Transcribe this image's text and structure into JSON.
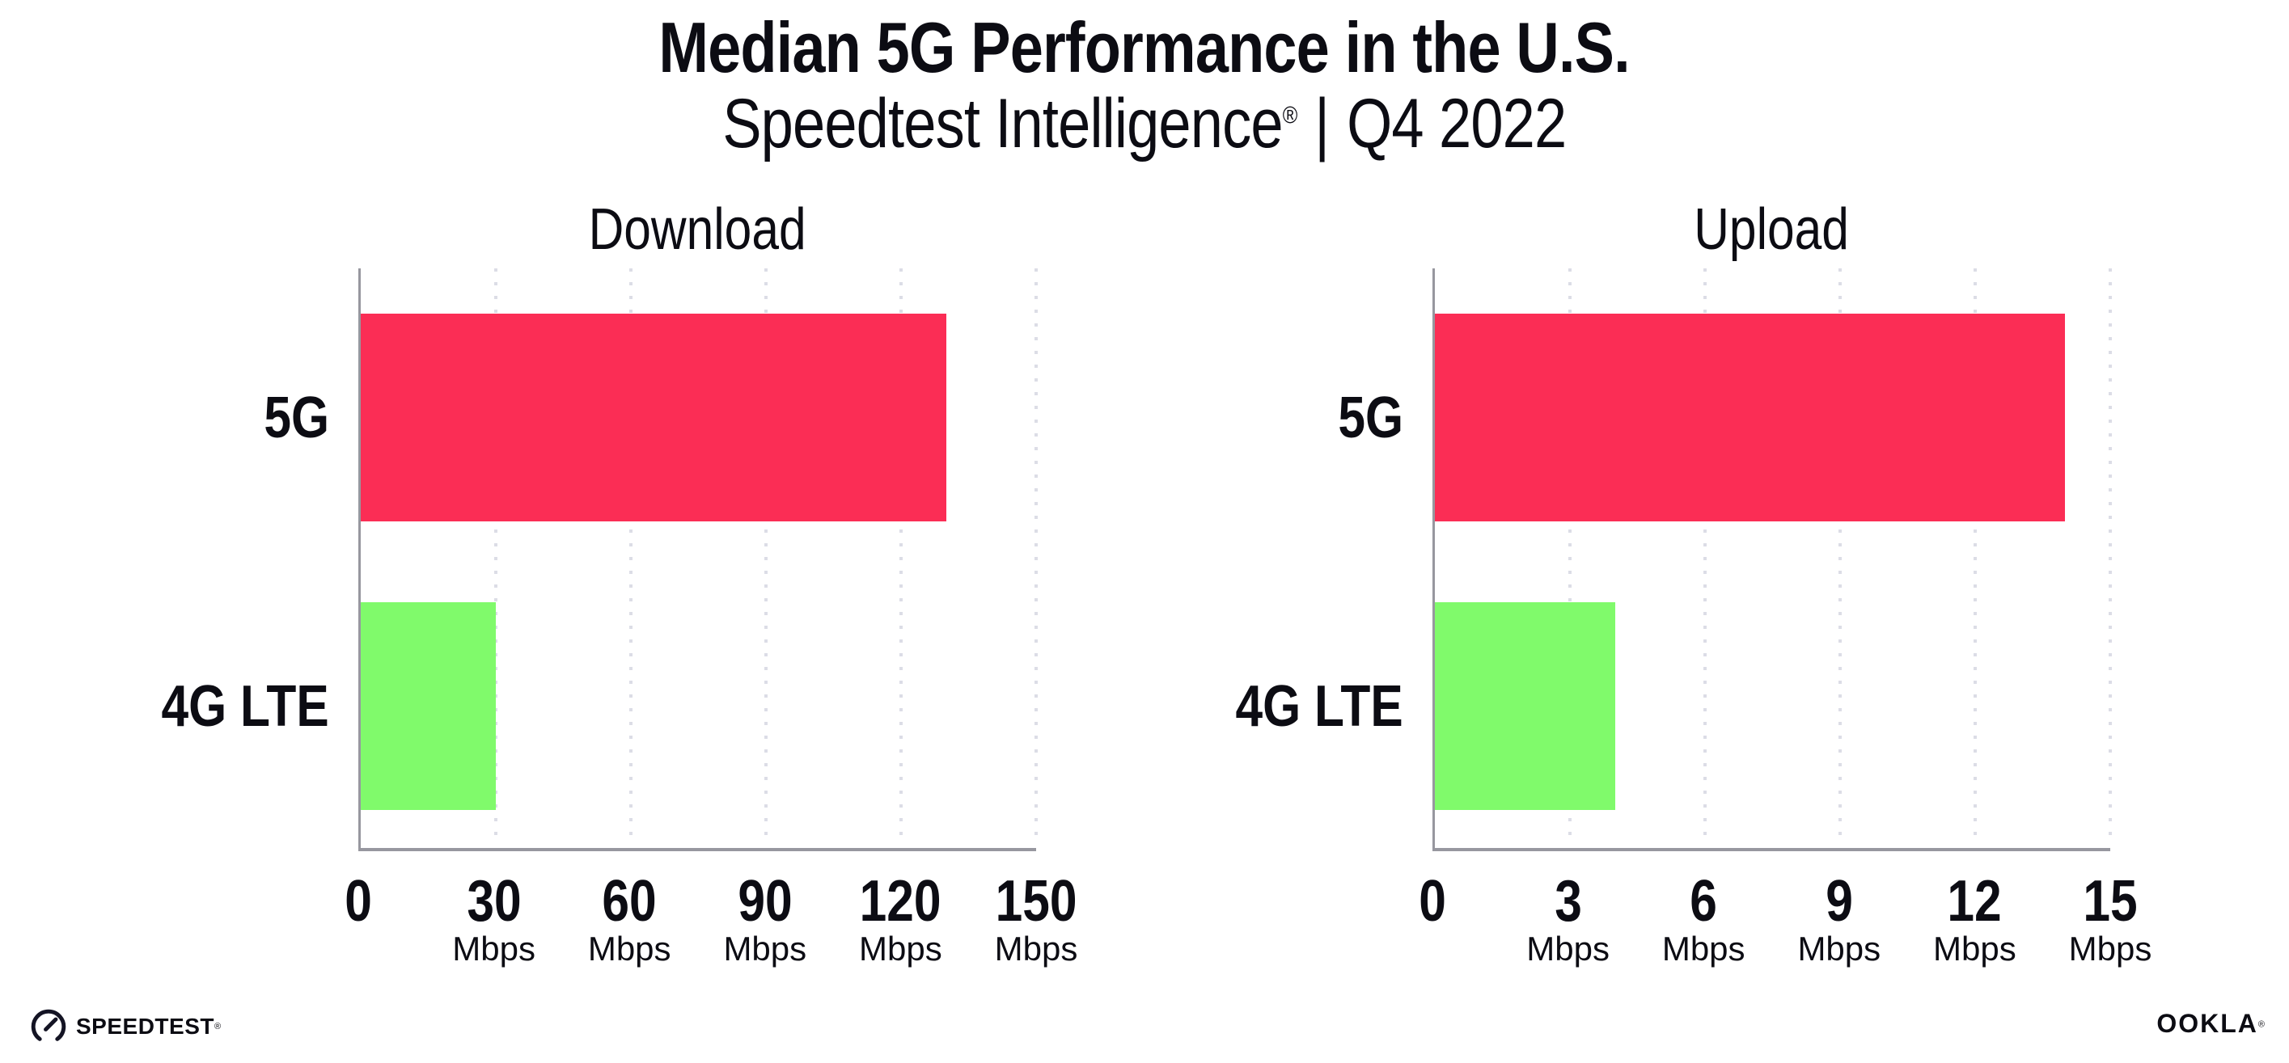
{
  "header": {
    "title": "Median 5G Performance in the U.S.",
    "subtitle": {
      "brand": "Speedtest Intelligence",
      "registered_mark": "®",
      "separator": "|",
      "period": "Q4 2022"
    }
  },
  "chart_data": [
    {
      "type": "bar",
      "orientation": "horizontal",
      "title": "Download",
      "categories": [
        "5G",
        "4G LTE"
      ],
      "values": [
        130,
        30
      ],
      "unit": "Mbps",
      "xlim": [
        0,
        150
      ],
      "xticks": [
        0,
        30,
        60,
        90,
        120,
        150
      ],
      "xtick_unit_label": "Mbps",
      "grid": "vertical-dotted",
      "legend": "none",
      "bar_colors": [
        "#fb2d55",
        "#80fa6b"
      ]
    },
    {
      "type": "bar",
      "orientation": "horizontal",
      "title": "Upload",
      "categories": [
        "5G",
        "4G LTE"
      ],
      "values": [
        14,
        4
      ],
      "unit": "Mbps",
      "xlim": [
        0,
        15
      ],
      "xticks": [
        0,
        3,
        6,
        9,
        12,
        15
      ],
      "xtick_unit_label": "Mbps",
      "grid": "vertical-dotted",
      "legend": "none",
      "bar_colors": [
        "#fb2d55",
        "#80fa6b"
      ]
    }
  ],
  "footer": {
    "speedtest": {
      "label": "SPEEDTEST",
      "mark": "®"
    },
    "ookla": {
      "label": "OOKLA",
      "mark": "®"
    }
  },
  "colors": {
    "bar_5g": "#fb2d55",
    "bar_4g_lte": "#80fa6b",
    "axis": "#97979f",
    "gridline": "#dcdde6",
    "text": "#0c0c13"
  }
}
